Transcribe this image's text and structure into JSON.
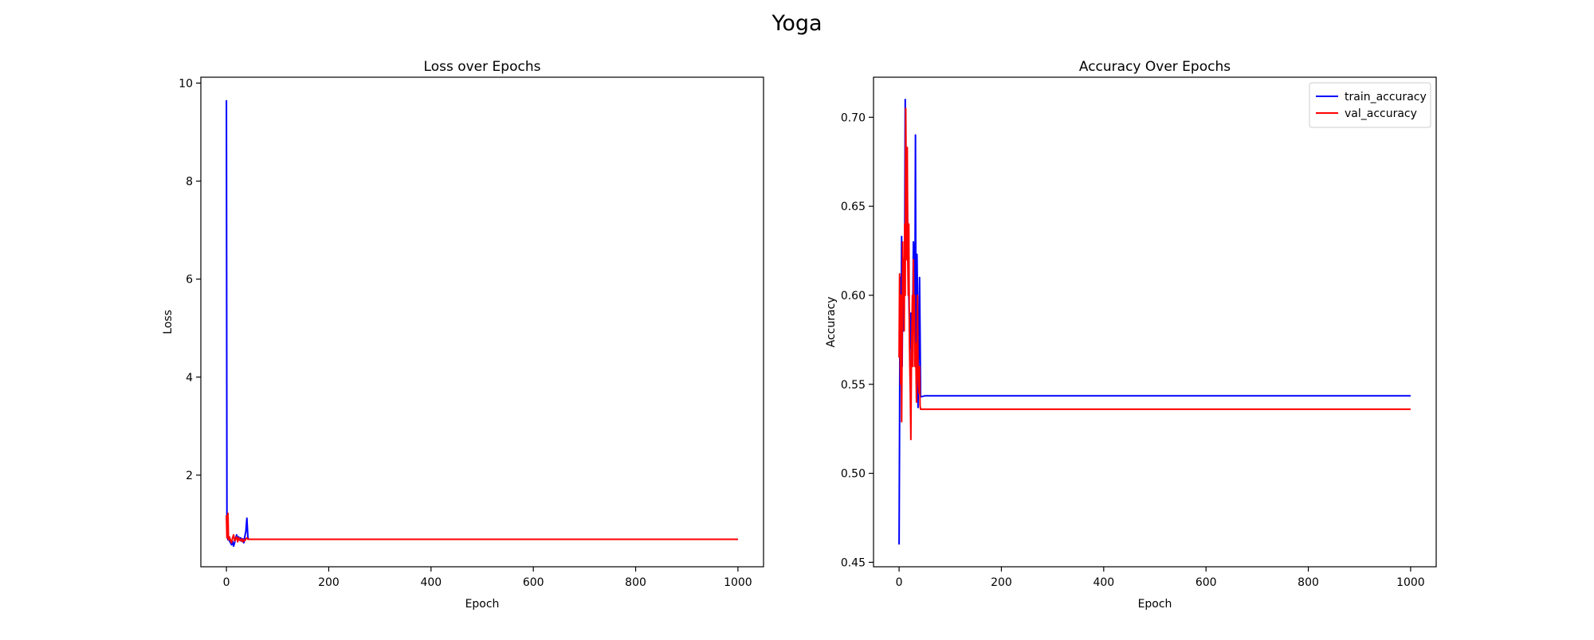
{
  "figure": {
    "suptitle": "Yoga"
  },
  "colors": {
    "train": "#0000ff",
    "val": "#ff0000",
    "axes": "#000000",
    "background": "#ffffff"
  },
  "chart_data": [
    {
      "type": "line",
      "title": "Loss over Epochs",
      "xlabel": "Epoch",
      "ylabel": "Loss",
      "xlim": [
        -50,
        1050
      ],
      "ylim": [
        0.13,
        10.12
      ],
      "xticks": [
        0,
        200,
        400,
        600,
        800,
        1000
      ],
      "yticks": [
        2,
        4,
        6,
        8,
        10
      ],
      "grid": false,
      "legend": null,
      "series": [
        {
          "color": "#0000ff",
          "points": [
            [
              0,
              9.65
            ],
            [
              1,
              1.15
            ],
            [
              2,
              0.75
            ],
            [
              3,
              0.68
            ],
            [
              4,
              0.7
            ],
            [
              6,
              0.66
            ],
            [
              8,
              0.62
            ],
            [
              10,
              0.58
            ],
            [
              12,
              0.65
            ],
            [
              14,
              0.55
            ],
            [
              16,
              0.62
            ],
            [
              18,
              0.72
            ],
            [
              20,
              0.78
            ],
            [
              22,
              0.7
            ],
            [
              24,
              0.74
            ],
            [
              26,
              0.67
            ],
            [
              28,
              0.72
            ],
            [
              30,
              0.65
            ],
            [
              32,
              0.7
            ],
            [
              34,
              0.62
            ],
            [
              36,
              0.75
            ],
            [
              38,
              0.85
            ],
            [
              40,
              1.12
            ],
            [
              42,
              0.72
            ],
            [
              44,
              0.69
            ],
            [
              50,
              0.69
            ],
            [
              100,
              0.69
            ],
            [
              200,
              0.69
            ],
            [
              400,
              0.69
            ],
            [
              600,
              0.69
            ],
            [
              800,
              0.69
            ],
            [
              1000,
              0.69
            ]
          ]
        },
        {
          "color": "#ff0000",
          "points": [
            [
              0,
              1.18
            ],
            [
              1,
              0.72
            ],
            [
              2,
              0.85
            ],
            [
              3,
              1.22
            ],
            [
              4,
              0.68
            ],
            [
              6,
              0.74
            ],
            [
              8,
              0.66
            ],
            [
              10,
              0.62
            ],
            [
              12,
              0.72
            ],
            [
              14,
              0.78
            ],
            [
              16,
              0.66
            ],
            [
              18,
              0.7
            ],
            [
              20,
              0.74
            ],
            [
              22,
              0.64
            ],
            [
              24,
              0.72
            ],
            [
              26,
              0.68
            ],
            [
              28,
              0.66
            ],
            [
              30,
              0.7
            ],
            [
              32,
              0.64
            ],
            [
              34,
              0.68
            ],
            [
              36,
              0.66
            ],
            [
              38,
              0.7
            ],
            [
              40,
              0.72
            ],
            [
              42,
              0.69
            ],
            [
              44,
              0.69
            ],
            [
              50,
              0.69
            ],
            [
              100,
              0.69
            ],
            [
              200,
              0.69
            ],
            [
              400,
              0.69
            ],
            [
              600,
              0.69
            ],
            [
              800,
              0.69
            ],
            [
              1000,
              0.69
            ]
          ]
        }
      ]
    },
    {
      "type": "line",
      "title": "Accuracy Over Epochs",
      "xlabel": "Epoch",
      "ylabel": "Accuracy",
      "xlim": [
        -50,
        1050
      ],
      "ylim": [
        0.4475,
        0.7225
      ],
      "xticks": [
        0,
        200,
        400,
        600,
        800,
        1000
      ],
      "yticks": [
        0.45,
        0.5,
        0.55,
        0.6,
        0.65,
        0.7
      ],
      "ytick_labels": [
        "0.45",
        "0.50",
        "0.55",
        "0.60",
        "0.65",
        "0.70"
      ],
      "grid": false,
      "legend": "top-right",
      "series": [
        {
          "name": "train_accuracy",
          "color": "#0000ff",
          "points": [
            [
              0,
              0.46
            ],
            [
              1,
              0.53
            ],
            [
              2,
              0.61
            ],
            [
              3,
              0.553
            ],
            [
              4,
              0.58
            ],
            [
              5,
              0.633
            ],
            [
              6,
              0.56
            ],
            [
              7,
              0.6
            ],
            [
              8,
              0.62
            ],
            [
              9,
              0.58
            ],
            [
              10,
              0.6
            ],
            [
              11,
              0.62
            ],
            [
              12,
              0.71
            ],
            [
              13,
              0.66
            ],
            [
              14,
              0.64
            ],
            [
              15,
              0.68
            ],
            [
              16,
              0.66
            ],
            [
              17,
              0.63
            ],
            [
              18,
              0.62
            ],
            [
              19,
              0.6
            ],
            [
              20,
              0.587
            ],
            [
              21,
              0.57
            ],
            [
              22,
              0.573
            ],
            [
              23,
              0.59
            ],
            [
              24,
              0.56
            ],
            [
              25,
              0.58
            ],
            [
              26,
              0.575
            ],
            [
              27,
              0.6
            ],
            [
              28,
              0.63
            ],
            [
              29,
              0.62
            ],
            [
              30,
              0.58
            ],
            [
              31,
              0.6
            ],
            [
              32,
              0.69
            ],
            [
              33,
              0.58
            ],
            [
              34,
              0.55
            ],
            [
              35,
              0.623
            ],
            [
              36,
              0.6
            ],
            [
              37,
              0.537
            ],
            [
              38,
              0.56
            ],
            [
              39,
              0.58
            ],
            [
              40,
              0.61
            ],
            [
              41,
              0.58
            ],
            [
              42,
              0.543
            ],
            [
              43,
              0.543
            ],
            [
              50,
              0.5435
            ],
            [
              100,
              0.5435
            ],
            [
              200,
              0.5435
            ],
            [
              400,
              0.5435
            ],
            [
              600,
              0.5435
            ],
            [
              800,
              0.5435
            ],
            [
              1000,
              0.5435
            ]
          ]
        },
        {
          "name": "val_accuracy",
          "color": "#ff0000",
          "points": [
            [
              0,
              0.565
            ],
            [
              1,
              0.612
            ],
            [
              2,
              0.57
            ],
            [
              3,
              0.55
            ],
            [
              4,
              0.6
            ],
            [
              5,
              0.529
            ],
            [
              6,
              0.58
            ],
            [
              7,
              0.63
            ],
            [
              8,
              0.6
            ],
            [
              9,
              0.62
            ],
            [
              10,
              0.58
            ],
            [
              11,
              0.64
            ],
            [
              12,
              0.6
            ],
            [
              13,
              0.705
            ],
            [
              14,
              0.66
            ],
            [
              15,
              0.62
            ],
            [
              16,
              0.683
            ],
            [
              17,
              0.62
            ],
            [
              18,
              0.6
            ],
            [
              19,
              0.64
            ],
            [
              20,
              0.58
            ],
            [
              21,
              0.56
            ],
            [
              22,
              0.545
            ],
            [
              23,
              0.519
            ],
            [
              24,
              0.56
            ],
            [
              25,
              0.58
            ],
            [
              26,
              0.6
            ],
            [
              27,
              0.56
            ],
            [
              28,
              0.62
            ],
            [
              29,
              0.58
            ],
            [
              30,
              0.6
            ],
            [
              31,
              0.56
            ],
            [
              32,
              0.573
            ],
            [
              33,
              0.56
            ],
            [
              34,
              0.54
            ],
            [
              35,
              0.575
            ],
            [
              36,
              0.6
            ],
            [
              37,
              0.56
            ],
            [
              38,
              0.55
            ],
            [
              39,
              0.545
            ],
            [
              40,
              0.56
            ],
            [
              41,
              0.538
            ],
            [
              42,
              0.536
            ],
            [
              50,
              0.536
            ],
            [
              100,
              0.536
            ],
            [
              200,
              0.536
            ],
            [
              400,
              0.536
            ],
            [
              600,
              0.536
            ],
            [
              800,
              0.536
            ],
            [
              1000,
              0.536
            ]
          ]
        }
      ]
    }
  ]
}
